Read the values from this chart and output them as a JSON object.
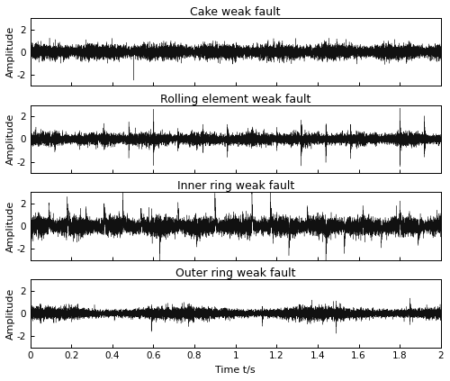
{
  "titles": [
    "Cake weak fault",
    "Rolling element weak fault",
    "Inner ring weak fault",
    "Outer ring weak fault"
  ],
  "xlabel": "Time t/s",
  "ylabel": "Amplitude",
  "xlim": [
    0,
    2
  ],
  "ylim": [
    -3,
    3
  ],
  "yticks": [
    -2,
    0,
    2
  ],
  "xticks": [
    0,
    0.2,
    0.4,
    0.6,
    0.8,
    1.0,
    1.2,
    1.4,
    1.6,
    1.8,
    2.0
  ],
  "xtick_labels": [
    "0",
    "0.2",
    "0.4",
    "0.6",
    "0.8",
    "1",
    "1.2",
    "1.4",
    "1.6",
    "1.8",
    "2"
  ],
  "n_samples": 12000,
  "background_color": "#ffffff",
  "line_color": "#111111",
  "title_fontsize": 9,
  "label_fontsize": 8,
  "tick_fontsize": 7.5,
  "linewidth": 0.25
}
